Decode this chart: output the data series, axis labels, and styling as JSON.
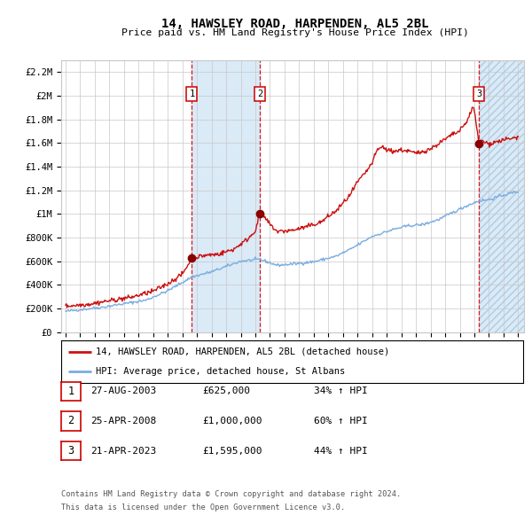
{
  "title": "14, HAWSLEY ROAD, HARPENDEN, AL5 2BL",
  "subtitle": "Price paid vs. HM Land Registry's House Price Index (HPI)",
  "x_start_year": 1995,
  "x_end_year": 2026,
  "ylim": [
    0,
    2300000
  ],
  "yticks": [
    0,
    200000,
    400000,
    600000,
    800000,
    1000000,
    1200000,
    1400000,
    1600000,
    1800000,
    2000000,
    2200000
  ],
  "ytick_labels": [
    "£0",
    "£200K",
    "£400K",
    "£600K",
    "£800K",
    "£1M",
    "£1.2M",
    "£1.4M",
    "£1.6M",
    "£1.8M",
    "£2M",
    "£2.2M"
  ],
  "hpi_color": "#7aade0",
  "price_color": "#cc1111",
  "dot_color": "#880000",
  "bg_color": "#ffffff",
  "grid_color": "#c8c8c8",
  "shade_color": "#daeaf7",
  "transactions": [
    {
      "label": "1",
      "year": 2003.65,
      "price": 625000,
      "date": "27-AUG-2003",
      "hpi_pct": "34%"
    },
    {
      "label": "2",
      "year": 2008.32,
      "price": 1000000,
      "date": "25-APR-2008",
      "hpi_pct": "60%"
    },
    {
      "label": "3",
      "year": 2023.31,
      "price": 1595000,
      "date": "21-APR-2023",
      "hpi_pct": "44%"
    }
  ],
  "legend_entry1": "14, HAWSLEY ROAD, HARPENDEN, AL5 2BL (detached house)",
  "legend_entry2": "HPI: Average price, detached house, St Albans",
  "footer1": "Contains HM Land Registry data © Crown copyright and database right 2024.",
  "footer2": "This data is licensed under the Open Government Licence v3.0."
}
